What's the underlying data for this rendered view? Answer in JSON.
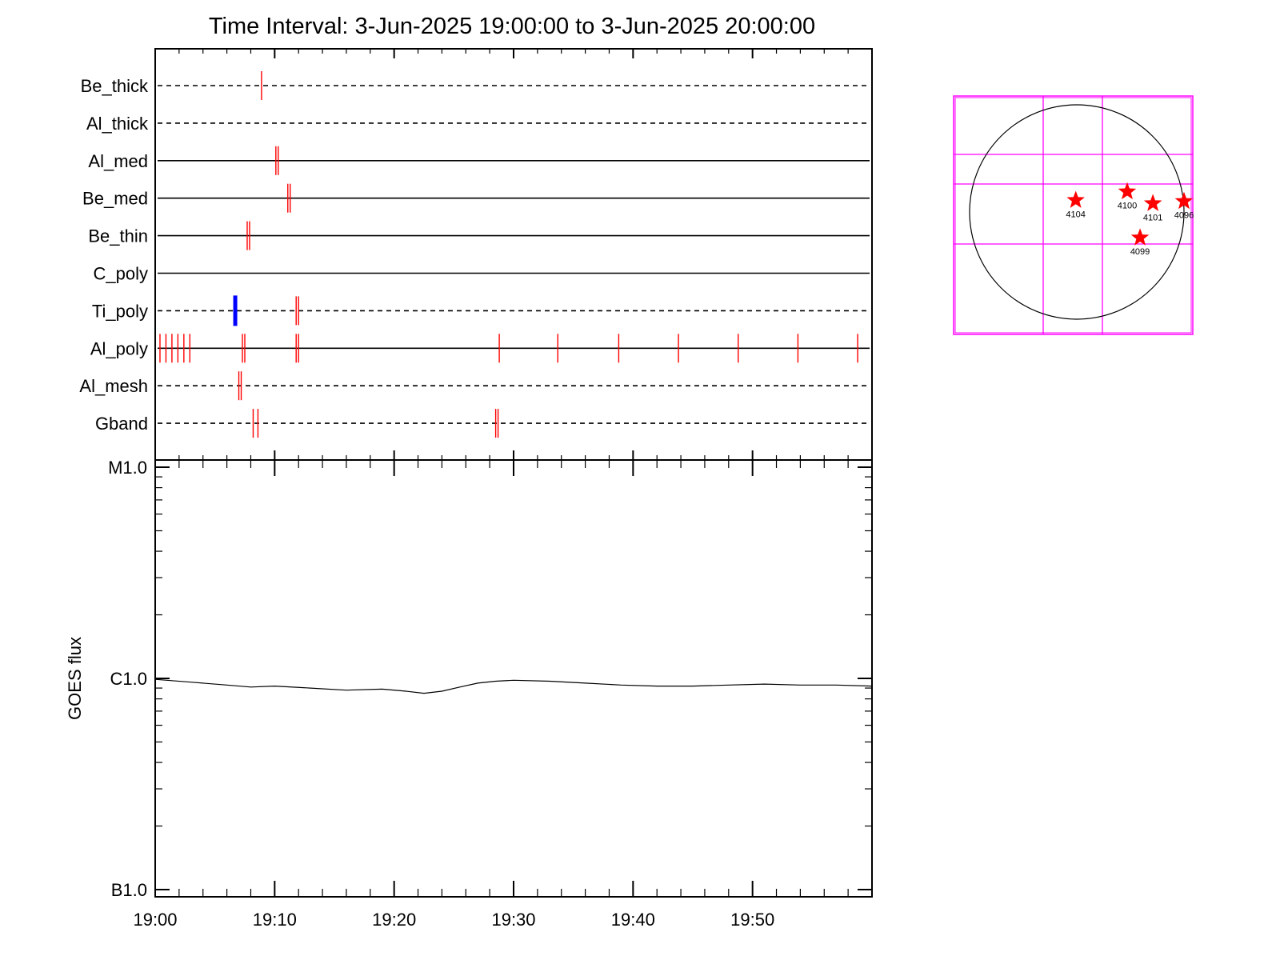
{
  "title": "Time Interval:  3-Jun-2025 19:00:00 to  3-Jun-2025 20:00:00",
  "colors": {
    "axis": "#000000",
    "event_red": "#ff0000",
    "event_blue": "#0000ff",
    "grid_magenta": "#ff00ff",
    "flare_star": "#ff0000"
  },
  "chart_data": [
    {
      "type": "timeline",
      "x_range": [
        "19:00",
        "20:00"
      ],
      "rows": [
        {
          "label": "Be_thick",
          "style": "dashed",
          "red": [
            8.9
          ],
          "blue": []
        },
        {
          "label": "Al_thick",
          "style": "dashed",
          "red": [],
          "blue": []
        },
        {
          "label": "Al_med",
          "style": "solid",
          "red": [
            10.1,
            10.3
          ],
          "blue": []
        },
        {
          "label": "Be_med",
          "style": "solid",
          "red": [
            11.1,
            11.3
          ],
          "blue": []
        },
        {
          "label": "Be_thin",
          "style": "solid",
          "red": [
            7.7,
            7.9
          ],
          "blue": []
        },
        {
          "label": "C_poly",
          "style": "solid",
          "red": [],
          "blue": []
        },
        {
          "label": "Ti_poly",
          "style": "dashed",
          "red": [
            11.8,
            12.0
          ],
          "blue": [
            6.7
          ]
        },
        {
          "label": "Al_poly",
          "style": "solid",
          "red": [
            0.4,
            0.9,
            1.4,
            1.9,
            2.4,
            2.9,
            7.3,
            7.5,
            11.8,
            12.0,
            28.8,
            33.7,
            38.8,
            43.8,
            48.8,
            53.8,
            58.8
          ],
          "blue": []
        },
        {
          "label": "Al_mesh",
          "style": "dashed",
          "red": [
            7.0,
            7.2
          ],
          "blue": []
        },
        {
          "label": "Gband",
          "style": "dashed",
          "red": [
            8.2,
            8.6,
            28.5,
            28.7
          ],
          "blue": []
        }
      ]
    },
    {
      "type": "line",
      "ylabel": "GOES flux",
      "y_scale": "log",
      "y_ticks": [
        "M1.0",
        "C1.0",
        "B1.0"
      ],
      "ylim": [
        1e-07,
        1e-05
      ],
      "x_ticks": [
        "19:00",
        "19:10",
        "19:20",
        "19:30",
        "19:40",
        "19:50"
      ],
      "x_range_minutes": [
        0,
        60
      ],
      "series": [
        {
          "x": [
            0,
            3,
            6,
            8,
            10,
            13,
            16,
            19,
            21,
            22.5,
            24,
            25.5,
            27,
            28.5,
            30,
            33,
            36,
            39,
            42,
            45,
            48,
            51,
            54,
            57,
            60
          ],
          "y": [
            9.9e-07,
            9.6e-07,
            9.3e-07,
            9.1e-07,
            9.2e-07,
            9e-07,
            8.8e-07,
            8.9e-07,
            8.7e-07,
            8.5e-07,
            8.7e-07,
            9.1e-07,
            9.5e-07,
            9.7e-07,
            9.8e-07,
            9.7e-07,
            9.5e-07,
            9.3e-07,
            9.2e-07,
            9.2e-07,
            9.3e-07,
            9.4e-07,
            9.3e-07,
            9.3e-07,
            9.2e-07
          ]
        }
      ]
    }
  ],
  "sun_map": {
    "regions": [
      {
        "label": "4104",
        "lon": -0.01,
        "lat": 0.11
      },
      {
        "label": "4100",
        "lon": 0.47,
        "lat": 0.19
      },
      {
        "label": "4101",
        "lon": 0.71,
        "lat": 0.08
      },
      {
        "label": "4096",
        "lon": 1.0,
        "lat": 0.1
      },
      {
        "label": "4099",
        "lon": 0.59,
        "lat": -0.24
      }
    ]
  }
}
